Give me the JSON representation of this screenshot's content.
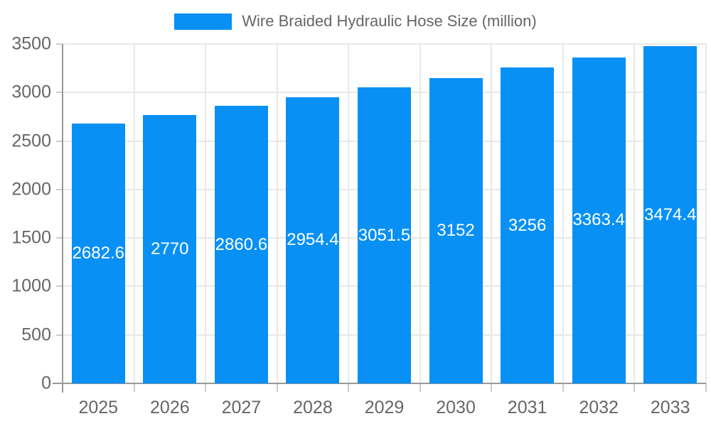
{
  "legend": {
    "label": "Wire Braided Hydraulic Hose Size (million)"
  },
  "chart_data": {
    "type": "bar",
    "title": "Wire Braided Hydraulic Hose Size (million)",
    "categories": [
      "2025",
      "2026",
      "2027",
      "2028",
      "2029",
      "2030",
      "2031",
      "2032",
      "2033"
    ],
    "series": [
      {
        "name": "Wire Braided Hydraulic Hose Size (million)",
        "values": [
          2682.6,
          2770,
          2860.6,
          2954.4,
          3051.5,
          3152,
          3256,
          3363.4,
          3474.4
        ]
      }
    ],
    "value_labels": [
      "2682.6",
      "2770",
      "2860.6",
      "2954.4",
      "3051.5",
      "3152",
      "3256",
      "3363.4",
      "3474.4"
    ],
    "ylim": [
      0,
      3500
    ],
    "ytick_step": 500,
    "ytick_labels": [
      "0",
      "500",
      "1000",
      "1500",
      "2000",
      "2500",
      "3000",
      "3500"
    ],
    "grid": true,
    "legend_position": "top",
    "value_label_position": "inside-center",
    "colors": {
      "bar": "#0890f5",
      "grid_line": "#e8e8e8",
      "axis_line": "#999999",
      "tick_line": "#cccccc",
      "axis_text": "#666666",
      "value_text": "#ffffff",
      "legend_text": "#666666"
    }
  }
}
